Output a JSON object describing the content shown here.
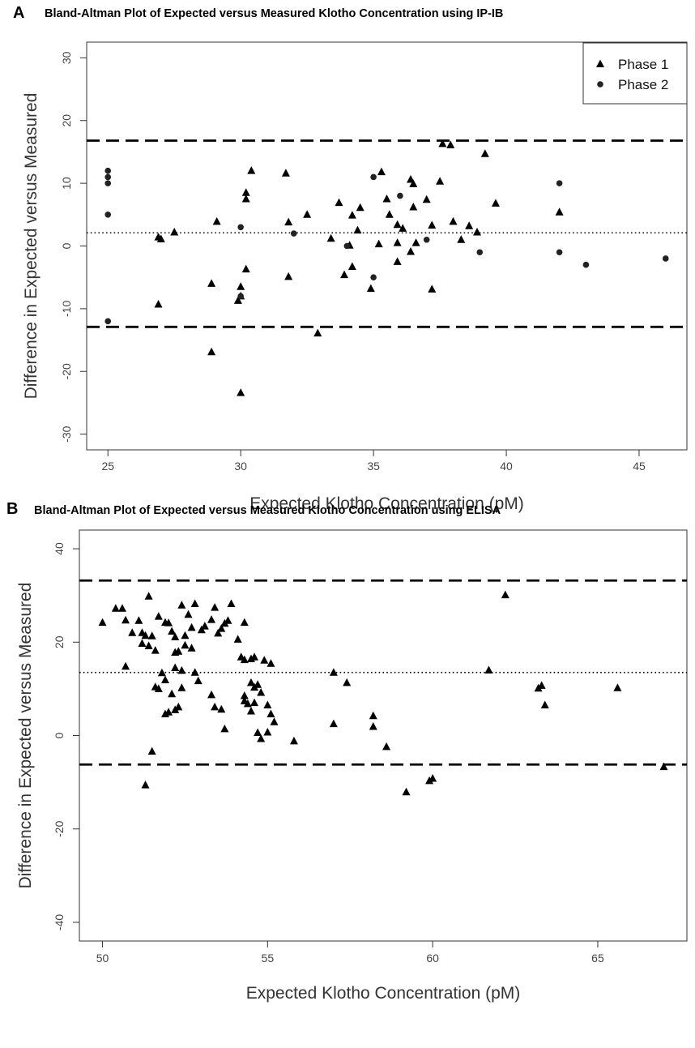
{
  "chart_data": [
    {
      "type": "scatter",
      "panel_label": "A",
      "title": "Bland-Altman Plot of Expected versus Measured Klotho Concentration using IP-IB",
      "xlabel": "Expected Klotho Concentration (pM)",
      "ylabel": "Difference in Expected versus Measured",
      "xlim": [
        24.2,
        46.8
      ],
      "ylim": [
        -32.5,
        32.5
      ],
      "xticks": [
        25,
        30,
        35,
        40,
        45
      ],
      "yticks": [
        -30,
        -20,
        -10,
        0,
        10,
        20,
        30
      ],
      "grid": false,
      "legend_position": "top-right",
      "reference_lines": [
        {
          "kind": "upper limit of agreement",
          "style": "dashed",
          "y": 16.8
        },
        {
          "kind": "mean difference",
          "style": "dotted",
          "y": 2.1
        },
        {
          "kind": "lower limit of agreement",
          "style": "dashed",
          "y": -12.9
        }
      ],
      "series": [
        {
          "name": "Phase 1",
          "marker": "triangle",
          "points": [
            [
              26.9,
              1.4
            ],
            [
              27.0,
              1.1
            ],
            [
              27.5,
              2.2
            ],
            [
              26.9,
              -9.3
            ],
            [
              28.9,
              -6.0
            ],
            [
              29.1,
              3.9
            ],
            [
              28.9,
              -16.9
            ],
            [
              29.9,
              -8.7
            ],
            [
              30.0,
              -6.5
            ],
            [
              30.0,
              -8.0
            ],
            [
              30.0,
              -23.4
            ],
            [
              30.2,
              8.5
            ],
            [
              30.2,
              7.5
            ],
            [
              30.4,
              12.0
            ],
            [
              30.2,
              -3.7
            ],
            [
              31.7,
              11.6
            ],
            [
              31.8,
              3.8
            ],
            [
              31.8,
              -4.9
            ],
            [
              32.5,
              5.0
            ],
            [
              32.9,
              -13.9
            ],
            [
              33.4,
              1.2
            ],
            [
              33.7,
              6.9
            ],
            [
              33.9,
              -4.6
            ],
            [
              34.1,
              0.1
            ],
            [
              34.2,
              4.9
            ],
            [
              34.2,
              -3.3
            ],
            [
              34.5,
              6.1
            ],
            [
              34.4,
              2.5
            ],
            [
              34.9,
              -6.8
            ],
            [
              35.2,
              0.3
            ],
            [
              35.3,
              11.8
            ],
            [
              35.5,
              7.5
            ],
            [
              35.6,
              5.0
            ],
            [
              35.9,
              3.4
            ],
            [
              35.9,
              -2.5
            ],
            [
              35.9,
              0.5
            ],
            [
              36.1,
              2.8
            ],
            [
              36.4,
              10.6
            ],
            [
              36.5,
              9.9
            ],
            [
              36.4,
              -0.9
            ],
            [
              36.5,
              6.2
            ],
            [
              36.6,
              0.5
            ],
            [
              37.0,
              7.4
            ],
            [
              37.2,
              3.3
            ],
            [
              37.2,
              -6.9
            ],
            [
              37.5,
              10.3
            ],
            [
              37.6,
              16.3
            ],
            [
              37.9,
              16.1
            ],
            [
              38.0,
              3.9
            ],
            [
              38.3,
              1.0
            ],
            [
              38.6,
              3.2
            ],
            [
              38.9,
              2.2
            ],
            [
              39.2,
              14.7
            ],
            [
              39.6,
              6.8
            ],
            [
              42.0,
              5.4
            ]
          ]
        },
        {
          "name": "Phase 2",
          "marker": "circle",
          "points": [
            [
              25.0,
              12.0
            ],
            [
              25.0,
              11.0
            ],
            [
              25.0,
              10.0
            ],
            [
              25.0,
              5.0
            ],
            [
              25.0,
              -12.0
            ],
            [
              30.0,
              3.0
            ],
            [
              30.0,
              -8.0
            ],
            [
              32.0,
              2.0
            ],
            [
              34.0,
              0.0
            ],
            [
              35.0,
              11.0
            ],
            [
              35.0,
              -5.0
            ],
            [
              36.0,
              8.0
            ],
            [
              37.0,
              1.0
            ],
            [
              39.0,
              -1.0
            ],
            [
              42.0,
              10.0
            ],
            [
              42.0,
              -1.0
            ],
            [
              43.0,
              -3.0
            ],
            [
              46.0,
              -2.0
            ]
          ]
        }
      ]
    },
    {
      "type": "scatter",
      "panel_label": "B",
      "title": "Bland-Altman Plot of Expected versus Measured Klotho Concentration using ELISA",
      "xlabel": "Expected Klotho Concentration (pM)",
      "ylabel": "Difference in Expected versus Measured",
      "xlim": [
        49.3,
        67.7
      ],
      "ylim": [
        -44,
        44
      ],
      "xticks": [
        50,
        55,
        60,
        65
      ],
      "yticks": [
        -40,
        -20,
        0,
        20,
        40
      ],
      "grid": false,
      "reference_lines": [
        {
          "kind": "upper limit of agreement",
          "style": "dashed",
          "y": 33.2
        },
        {
          "kind": "mean difference",
          "style": "dotted",
          "y": 13.5
        },
        {
          "kind": "lower limit of agreement",
          "style": "dashed",
          "y": -6.2
        }
      ],
      "series": [
        {
          "marker": "triangle",
          "points": [
            [
              50.0,
              24.2
            ],
            [
              50.4,
              27.2
            ],
            [
              50.6,
              27.2
            ],
            [
              50.7,
              24.7
            ],
            [
              50.7,
              14.8
            ],
            [
              50.9,
              22.0
            ],
            [
              51.1,
              24.6
            ],
            [
              51.2,
              22.0
            ],
            [
              51.3,
              21.4
            ],
            [
              51.2,
              19.7
            ],
            [
              51.4,
              19.2
            ],
            [
              51.4,
              29.8
            ],
            [
              51.3,
              -10.6
            ],
            [
              51.5,
              21.3
            ],
            [
              51.6,
              18.2
            ],
            [
              51.6,
              10.4
            ],
            [
              51.7,
              25.5
            ],
            [
              51.7,
              10.0
            ],
            [
              51.5,
              -3.4
            ],
            [
              51.8,
              13.4
            ],
            [
              51.9,
              24.2
            ],
            [
              51.9,
              11.9
            ],
            [
              51.9,
              4.6
            ],
            [
              52.0,
              5.0
            ],
            [
              52.0,
              24.1
            ],
            [
              52.1,
              22.3
            ],
            [
              52.2,
              21.1
            ],
            [
              52.1,
              8.9
            ],
            [
              52.2,
              17.8
            ],
            [
              52.2,
              14.5
            ],
            [
              52.2,
              5.5
            ],
            [
              52.3,
              6.1
            ],
            [
              52.3,
              18.0
            ],
            [
              52.4,
              27.9
            ],
            [
              52.4,
              13.9
            ],
            [
              52.5,
              21.4
            ],
            [
              52.4,
              10.2
            ],
            [
              52.5,
              19.3
            ],
            [
              52.6,
              25.9
            ],
            [
              52.7,
              23.1
            ],
            [
              52.7,
              18.7
            ],
            [
              52.8,
              28.2
            ],
            [
              52.8,
              13.5
            ],
            [
              52.9,
              11.7
            ],
            [
              53.0,
              22.6
            ],
            [
              53.1,
              23.4
            ],
            [
              53.3,
              24.8
            ],
            [
              53.4,
              27.4
            ],
            [
              53.3,
              8.7
            ],
            [
              53.4,
              6.1
            ],
            [
              53.5,
              21.9
            ],
            [
              53.6,
              5.6
            ],
            [
              53.6,
              22.9
            ],
            [
              53.7,
              24.0
            ],
            [
              53.8,
              24.6
            ],
            [
              53.9,
              28.2
            ],
            [
              53.7,
              1.4
            ],
            [
              54.1,
              20.6
            ],
            [
              54.2,
              16.8
            ],
            [
              54.3,
              24.2
            ],
            [
              54.3,
              8.5
            ],
            [
              54.3,
              7.4
            ],
            [
              54.3,
              16.2
            ],
            [
              54.4,
              6.8
            ],
            [
              54.5,
              16.4
            ],
            [
              54.5,
              11.3
            ],
            [
              54.5,
              5.2
            ],
            [
              54.6,
              16.8
            ],
            [
              54.6,
              10.3
            ],
            [
              54.7,
              10.9
            ],
            [
              54.7,
              0.6
            ],
            [
              54.8,
              -0.7
            ],
            [
              54.6,
              7.0
            ],
            [
              54.8,
              9.2
            ],
            [
              54.9,
              16.1
            ],
            [
              55.0,
              6.5
            ],
            [
              55.0,
              0.7
            ],
            [
              55.1,
              15.4
            ],
            [
              55.1,
              4.6
            ],
            [
              55.2,
              2.9
            ],
            [
              55.8,
              -1.2
            ],
            [
              57.0,
              13.5
            ],
            [
              57.0,
              2.5
            ],
            [
              57.4,
              11.3
            ],
            [
              58.2,
              4.2
            ],
            [
              58.2,
              1.9
            ],
            [
              58.6,
              -2.4
            ],
            [
              59.2,
              -12.1
            ],
            [
              59.9,
              -9.7
            ],
            [
              60.0,
              -9.2
            ],
            [
              61.7,
              14.0
            ],
            [
              62.2,
              30.1
            ],
            [
              63.2,
              10.1
            ],
            [
              63.3,
              10.7
            ],
            [
              63.4,
              6.5
            ],
            [
              65.6,
              10.2
            ],
            [
              67.0,
              -6.7
            ]
          ]
        }
      ]
    }
  ]
}
